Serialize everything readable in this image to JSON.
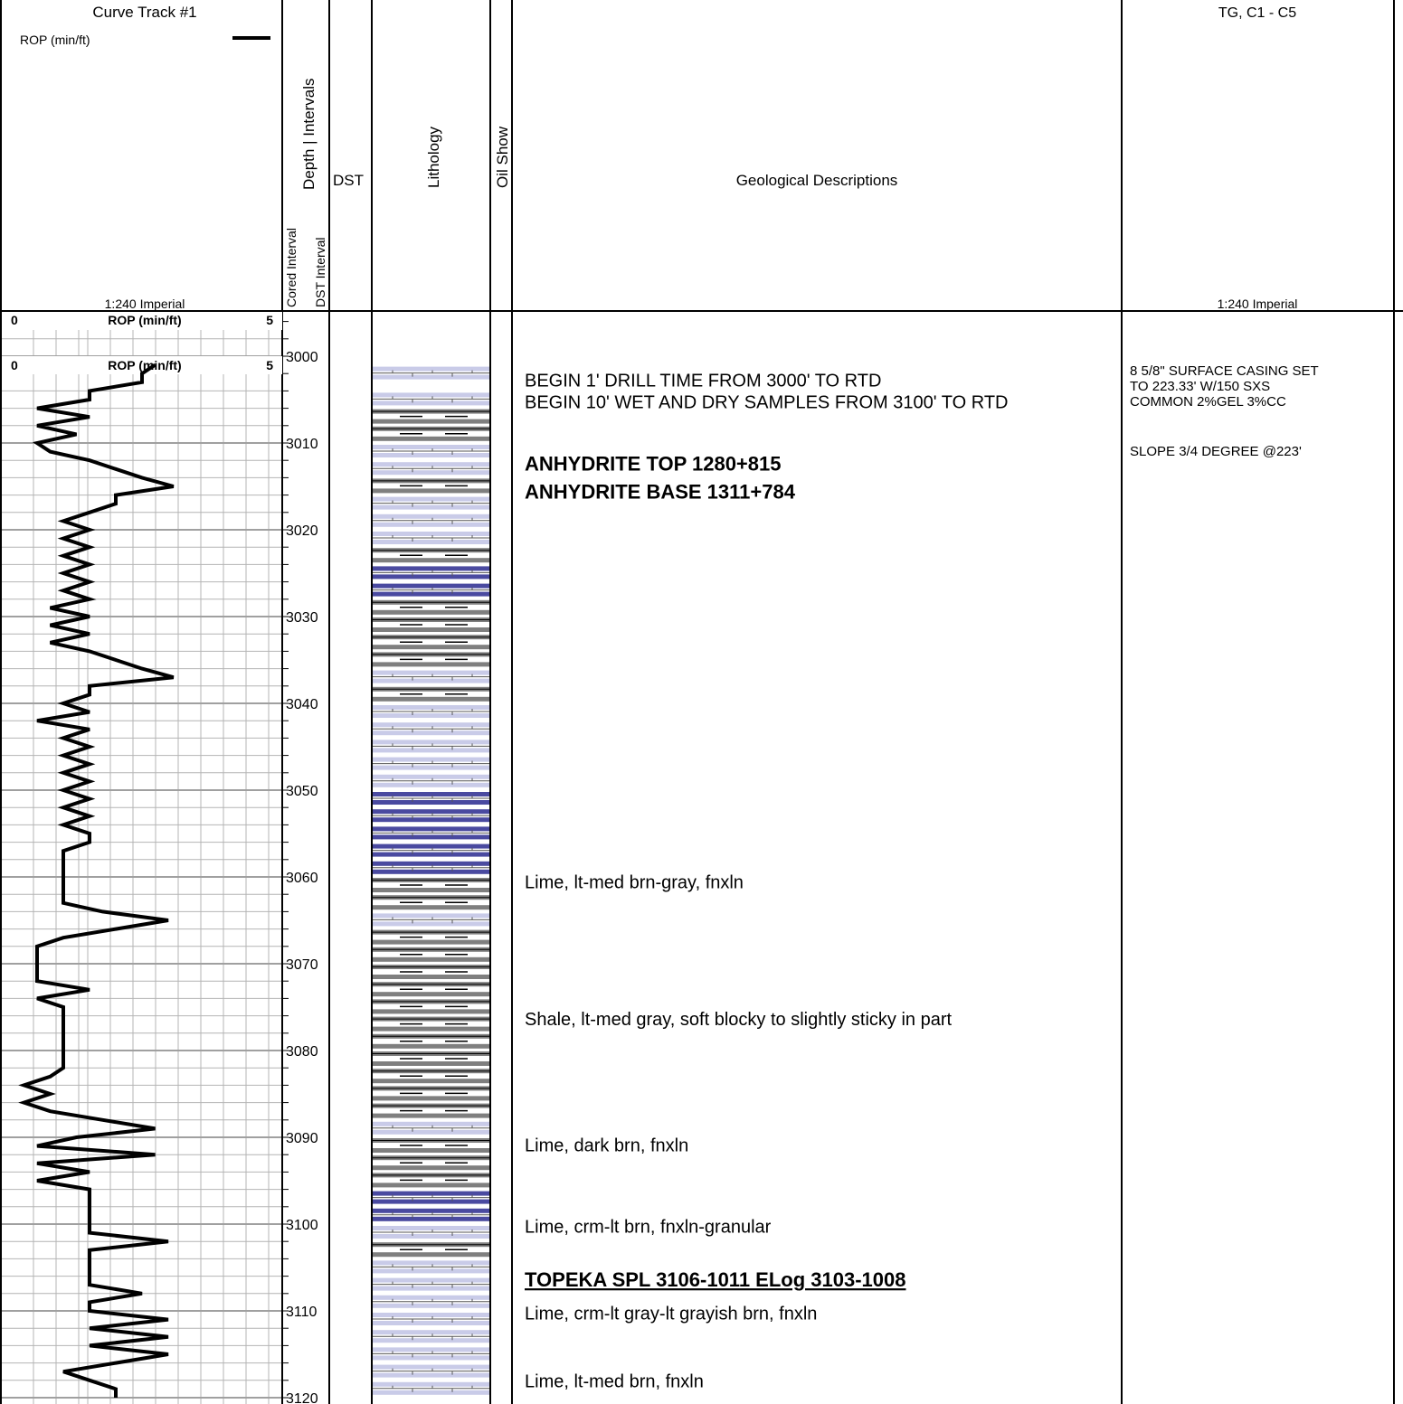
{
  "header": {
    "curve_track_title": "Curve Track #1",
    "rop_legend_label": "ROP (min/ft)",
    "curve_scale": "1:240 Imperial",
    "depth_intervals_label": "Depth | Intervals",
    "cored_interval_label": "Cored Interval",
    "dst_interval_label": "DST Interval",
    "dst_label": "DST",
    "lithology_label": "Lithology",
    "oil_show_label": "Oil Show",
    "geo_desc_label": "Geological Descriptions",
    "gas_title": "TG, C1 - C5",
    "gas_scale": "1:240 Imperial"
  },
  "scale_rows": [
    {
      "min": "0",
      "label": "ROP (min/ft)",
      "max": "5"
    },
    {
      "min": "0",
      "label": "ROP (min/ft)",
      "max": "5"
    }
  ],
  "depth_labels": [
    "3000",
    "3010",
    "3020",
    "3030",
    "3040",
    "3050",
    "3060",
    "3070",
    "3080",
    "3090",
    "3100",
    "3110",
    "3120"
  ],
  "chart_data": {
    "type": "line",
    "title": "",
    "xlabel": "ROP (min/ft)",
    "ylabel": "Depth",
    "xlim": [
      0,
      5
    ],
    "ylim": [
      3000,
      3120
    ],
    "series": [
      {
        "name": "ROP (min/ft)",
        "points": [
          [
            2.75,
            3001
          ],
          [
            2.5,
            3002
          ],
          [
            2.5,
            3003
          ],
          [
            1.5,
            3004
          ],
          [
            1.5,
            3005
          ],
          [
            0.5,
            3006
          ],
          [
            1.5,
            3007
          ],
          [
            0.5,
            3008
          ],
          [
            1.25,
            3009
          ],
          [
            0.5,
            3010
          ],
          [
            0.75,
            3011
          ],
          [
            1.5,
            3012
          ],
          [
            2.0,
            3013
          ],
          [
            2.5,
            3014
          ],
          [
            3.1,
            3015
          ],
          [
            2.0,
            3016
          ],
          [
            2.0,
            3017
          ],
          [
            1.5,
            3018
          ],
          [
            1.0,
            3019
          ],
          [
            1.5,
            3020
          ],
          [
            1.0,
            3021
          ],
          [
            1.5,
            3022
          ],
          [
            1.0,
            3023
          ],
          [
            1.5,
            3024
          ],
          [
            1.0,
            3025
          ],
          [
            1.5,
            3026
          ],
          [
            1.0,
            3027
          ],
          [
            1.5,
            3028
          ],
          [
            0.75,
            3029
          ],
          [
            1.5,
            3030
          ],
          [
            0.75,
            3031
          ],
          [
            1.5,
            3032
          ],
          [
            0.75,
            3033
          ],
          [
            1.5,
            3034
          ],
          [
            2.0,
            3035
          ],
          [
            2.5,
            3036
          ],
          [
            3.1,
            3037
          ],
          [
            1.5,
            3038
          ],
          [
            1.5,
            3039
          ],
          [
            1.0,
            3040
          ],
          [
            1.5,
            3041
          ],
          [
            0.5,
            3042
          ],
          [
            1.5,
            3043
          ],
          [
            1.0,
            3044
          ],
          [
            1.5,
            3045
          ],
          [
            1.0,
            3046
          ],
          [
            1.5,
            3047
          ],
          [
            1.0,
            3048
          ],
          [
            1.5,
            3049
          ],
          [
            1.0,
            3050
          ],
          [
            1.5,
            3051
          ],
          [
            1.0,
            3052
          ],
          [
            1.5,
            3053
          ],
          [
            1.0,
            3054
          ],
          [
            1.5,
            3055
          ],
          [
            1.5,
            3056
          ],
          [
            1.0,
            3057
          ],
          [
            1.0,
            3058
          ],
          [
            1.0,
            3059
          ],
          [
            1.0,
            3060
          ],
          [
            1.0,
            3061
          ],
          [
            1.0,
            3062
          ],
          [
            1.0,
            3063
          ],
          [
            1.75,
            3064
          ],
          [
            3.0,
            3065
          ],
          [
            2.0,
            3066
          ],
          [
            1.0,
            3067
          ],
          [
            0.5,
            3068
          ],
          [
            0.5,
            3069
          ],
          [
            0.5,
            3070
          ],
          [
            0.5,
            3071
          ],
          [
            0.5,
            3072
          ],
          [
            1.5,
            3073
          ],
          [
            0.5,
            3074
          ],
          [
            1.0,
            3075
          ],
          [
            1.0,
            3076
          ],
          [
            1.0,
            3077
          ],
          [
            1.0,
            3078
          ],
          [
            1.0,
            3079
          ],
          [
            1.0,
            3080
          ],
          [
            1.0,
            3081
          ],
          [
            1.0,
            3082
          ],
          [
            0.75,
            3083
          ],
          [
            0.25,
            3084
          ],
          [
            0.75,
            3085
          ],
          [
            0.25,
            3086
          ],
          [
            0.75,
            3087
          ],
          [
            1.75,
            3088
          ],
          [
            2.75,
            3089
          ],
          [
            1.25,
            3090
          ],
          [
            0.5,
            3091
          ],
          [
            2.75,
            3092
          ],
          [
            0.5,
            3093
          ],
          [
            1.5,
            3094
          ],
          [
            0.5,
            3095
          ],
          [
            1.5,
            3096
          ],
          [
            1.5,
            3097
          ],
          [
            1.5,
            3098
          ],
          [
            1.5,
            3099
          ],
          [
            1.5,
            3100
          ],
          [
            1.5,
            3101
          ],
          [
            3.0,
            3102
          ],
          [
            1.5,
            3103
          ],
          [
            1.5,
            3104
          ],
          [
            1.5,
            3105
          ],
          [
            1.5,
            3106
          ],
          [
            1.5,
            3107
          ],
          [
            2.5,
            3108
          ],
          [
            1.5,
            3109
          ],
          [
            1.5,
            3110
          ],
          [
            3.0,
            3111
          ],
          [
            1.5,
            3112
          ],
          [
            3.0,
            3113
          ],
          [
            1.5,
            3114
          ],
          [
            3.0,
            3115
          ],
          [
            2.0,
            3116
          ],
          [
            1.0,
            3117
          ],
          [
            1.5,
            3118
          ],
          [
            2.0,
            3119
          ],
          [
            2.0,
            3120
          ]
        ]
      }
    ]
  },
  "lithology": [
    [
      3001,
      3004,
      "lime-light"
    ],
    [
      3004,
      3006,
      "lime-light"
    ],
    [
      3006,
      3008,
      "shale"
    ],
    [
      3008,
      3010,
      "shale"
    ],
    [
      3010,
      3012,
      "lime-light"
    ],
    [
      3012,
      3014,
      "lime-light"
    ],
    [
      3014,
      3016,
      "shale"
    ],
    [
      3016,
      3018,
      "lime-light"
    ],
    [
      3018,
      3020,
      "lime-light"
    ],
    [
      3020,
      3022,
      "lime-light"
    ],
    [
      3022,
      3024,
      "shale"
    ],
    [
      3024,
      3026,
      "lime-dark"
    ],
    [
      3026,
      3028,
      "lime-dark"
    ],
    [
      3028,
      3030,
      "shale"
    ],
    [
      3030,
      3032,
      "shale"
    ],
    [
      3032,
      3034,
      "shale"
    ],
    [
      3034,
      3036,
      "shale"
    ],
    [
      3036,
      3038,
      "lime-light"
    ],
    [
      3038,
      3040,
      "shale"
    ],
    [
      3040,
      3042,
      "lime-light"
    ],
    [
      3042,
      3044,
      "lime-light"
    ],
    [
      3044,
      3046,
      "lime-light"
    ],
    [
      3046,
      3048,
      "lime-light"
    ],
    [
      3048,
      3050,
      "lime-light"
    ],
    [
      3050,
      3052,
      "lime-dark"
    ],
    [
      3052,
      3054,
      "lime-dark"
    ],
    [
      3054,
      3056,
      "lime-dark"
    ],
    [
      3056,
      3058,
      "lime-dark"
    ],
    [
      3058,
      3060,
      "lime-dark"
    ],
    [
      3060,
      3062,
      "shale"
    ],
    [
      3062,
      3064,
      "shale"
    ],
    [
      3064,
      3066,
      "lime-light"
    ],
    [
      3066,
      3068,
      "shale"
    ],
    [
      3068,
      3070,
      "shale"
    ],
    [
      3070,
      3072,
      "shale"
    ],
    [
      3072,
      3074,
      "shale"
    ],
    [
      3074,
      3076,
      "shale"
    ],
    [
      3076,
      3078,
      "shale"
    ],
    [
      3078,
      3080,
      "shale"
    ],
    [
      3080,
      3082,
      "shale"
    ],
    [
      3082,
      3084,
      "shale"
    ],
    [
      3084,
      3086,
      "shale"
    ],
    [
      3086,
      3088,
      "shale"
    ],
    [
      3088,
      3090,
      "lime-light"
    ],
    [
      3090,
      3092,
      "shale"
    ],
    [
      3092,
      3094,
      "shale"
    ],
    [
      3094,
      3096,
      "shale"
    ],
    [
      3096,
      3098,
      "lime-dark"
    ],
    [
      3098,
      3100,
      "lime-dark"
    ],
    [
      3100,
      3102,
      "lime-light"
    ],
    [
      3102,
      3104,
      "shale"
    ],
    [
      3104,
      3106,
      "lime-light"
    ],
    [
      3106,
      3108,
      "lime-light"
    ],
    [
      3108,
      3110,
      "lime-light"
    ],
    [
      3110,
      3112,
      "lime-light"
    ],
    [
      3112,
      3114,
      "lime-light"
    ],
    [
      3114,
      3116,
      "lime-light"
    ],
    [
      3116,
      3118,
      "lime-light"
    ],
    [
      3118,
      3120,
      "lime-light"
    ]
  ],
  "descriptions": [
    {
      "depth": 3001.2,
      "lines": [
        "BEGIN 1' DRILL TIME FROM 3000' TO RTD",
        "BEGIN 10' WET AND DRY SAMPLES FROM 3100' TO RTD"
      ],
      "style": "normal"
    },
    {
      "depth": 3010.8,
      "lines": [
        "ANHYDRITE TOP 1280+815",
        "ANHYDRITE BASE 1311+784"
      ],
      "style": "bold"
    },
    {
      "depth": 3059.0,
      "lines": [
        "Lime, lt-med brn-gray, fnxln"
      ],
      "style": "normal"
    },
    {
      "depth": 3074.8,
      "lines": [
        "Shale, lt-med gray, soft blocky to slightly sticky in part"
      ],
      "style": "normal"
    },
    {
      "depth": 3089.3,
      "lines": [
        "Lime, dark brn, fnxln"
      ],
      "style": "normal"
    },
    {
      "depth": 3098.7,
      "lines": [
        "Lime, crm-lt brn, fnxln-granular"
      ],
      "style": "normal"
    },
    {
      "depth": 3104.8,
      "lines": [
        "TOPEKA SPL 3106-1011     ELog 3103-1008"
      ],
      "style": "bold-underline"
    },
    {
      "depth": 3108.7,
      "lines": [
        "Lime, crm-lt gray-lt grayish brn, fnxln"
      ],
      "style": "normal"
    },
    {
      "depth": 3116.5,
      "lines": [
        "Lime, lt-med brn, fnxln"
      ],
      "style": "normal"
    }
  ],
  "gas_notes": [
    {
      "depth": 3000.5,
      "lines": [
        "8 5/8\" SURFACE CASING SET",
        "TO 223.33' W/150 SXS",
        "COMMON 2%GEL 3%CC"
      ]
    },
    {
      "depth": 3009.8,
      "lines": [
        "SLOPE 3/4 DEGREE @223'"
      ]
    }
  ],
  "colors": {
    "grid": "#b4b4b4",
    "grid_major": "#a0a0a0",
    "lime_light": "#c9cbe8",
    "lime_dark": "#4a4aa0",
    "shale": "#7f7f7f"
  }
}
